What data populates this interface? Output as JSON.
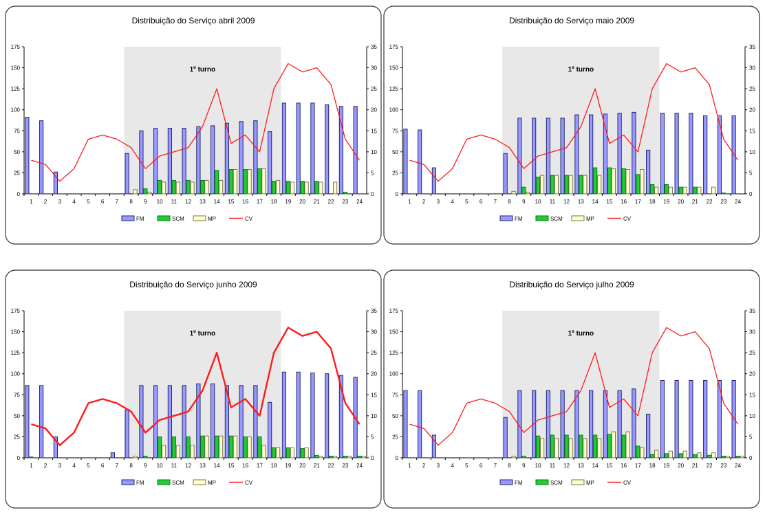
{
  "legend": [
    "FM",
    "SCM",
    "MP",
    "CV"
  ],
  "colors": {
    "fm": "#9999ff",
    "fm_dark": "#1f2a6b",
    "scm": "#22cc33",
    "scm_edge": "#0a7a1a",
    "mp": "#ffffcc",
    "mp_edge": "#777755",
    "cv": "#ff1a1a",
    "shade": "#e8e8e8",
    "frame": "#333333"
  },
  "chart_data": [
    {
      "type": "bar",
      "title": "Distribuição do Serviço abril 2009",
      "shift_label": "1º turno",
      "categories": [
        "1",
        "2",
        "3",
        "4",
        "5",
        "6",
        "7",
        "8",
        "9",
        "10",
        "11",
        "12",
        "13",
        "14",
        "15",
        "16",
        "17",
        "18",
        "19",
        "20",
        "21",
        "22",
        "23",
        "24"
      ],
      "ylim": [
        0,
        175
      ],
      "y2lim": [
        0,
        35
      ],
      "yticks": [
        "0",
        "25",
        "50",
        "75",
        "100",
        "125",
        "150",
        "175"
      ],
      "y2ticks": [
        "0",
        "5",
        "10",
        "15",
        "20",
        "25",
        "30",
        "35"
      ],
      "cv_width": 1.3,
      "series": [
        {
          "name": "FM",
          "values": [
            91,
            87,
            26,
            0,
            0,
            0,
            0,
            48,
            75,
            78,
            78,
            78,
            80,
            81,
            84,
            86,
            87,
            74,
            108,
            108,
            108,
            106,
            104,
            104
          ]
        },
        {
          "name": "SCM",
          "values": [
            0,
            0,
            0,
            0,
            0,
            0,
            0,
            0,
            6,
            16,
            16,
            16,
            16,
            28,
            29,
            29,
            30,
            15,
            15,
            15,
            15,
            0,
            2,
            0
          ]
        },
        {
          "name": "MP",
          "values": [
            0,
            0,
            0,
            0,
            0,
            0,
            0,
            5,
            2,
            14,
            14,
            14,
            16,
            16,
            29,
            29,
            30,
            16,
            14,
            14,
            14,
            14,
            0,
            0
          ]
        },
        {
          "name": "CV",
          "axis": "right",
          "values": [
            8,
            7,
            3,
            6,
            13,
            14,
            13,
            11,
            6,
            9,
            10,
            11,
            16,
            25,
            12,
            14,
            10,
            25,
            31,
            29,
            30,
            26,
            13,
            8
          ]
        }
      ]
    },
    {
      "type": "bar",
      "title": "Distribuição do Serviço maio 2009",
      "shift_label": "1º turno",
      "categories": [
        "1",
        "2",
        "3",
        "4",
        "5",
        "6",
        "7",
        "8",
        "9",
        "10",
        "11",
        "12",
        "13",
        "14",
        "15",
        "16",
        "17",
        "18",
        "19",
        "20",
        "21",
        "22",
        "23",
        "24"
      ],
      "ylim": [
        0,
        175
      ],
      "y2lim": [
        0,
        35
      ],
      "yticks": [
        "0",
        "25",
        "50",
        "75",
        "100",
        "125",
        "150",
        "175"
      ],
      "y2ticks": [
        "0",
        "5",
        "10",
        "15",
        "20",
        "25",
        "30",
        "35"
      ],
      "cv_width": 1.3,
      "series": [
        {
          "name": "FM",
          "values": [
            77,
            76,
            31,
            0,
            0,
            0,
            0,
            48,
            90,
            90,
            90,
            90,
            94,
            94,
            95,
            96,
            97,
            52,
            96,
            96,
            96,
            93,
            93,
            93
          ]
        },
        {
          "name": "SCM",
          "values": [
            0,
            0,
            0,
            0,
            0,
            0,
            0,
            0,
            8,
            20,
            22,
            22,
            22,
            31,
            31,
            30,
            23,
            11,
            11,
            8,
            8,
            0,
            1,
            0
          ]
        },
        {
          "name": "MP",
          "values": [
            0,
            0,
            0,
            0,
            0,
            0,
            0,
            3,
            2,
            22,
            22,
            22,
            22,
            22,
            30,
            29,
            29,
            8,
            8,
            8,
            8,
            8,
            0,
            0
          ]
        },
        {
          "name": "CV",
          "axis": "right",
          "values": [
            8,
            7,
            3,
            6,
            13,
            14,
            13,
            11,
            6,
            9,
            10,
            11,
            16,
            25,
            12,
            14,
            10,
            25,
            31,
            29,
            30,
            26,
            13,
            8
          ]
        }
      ]
    },
    {
      "type": "bar",
      "title": "Distribuição do Serviço junho 2009",
      "shift_label": "1º turno",
      "categories": [
        "1",
        "2",
        "3",
        "4",
        "5",
        "6",
        "7",
        "8",
        "9",
        "10",
        "11",
        "12",
        "13",
        "14",
        "15",
        "16",
        "17",
        "18",
        "19",
        "20",
        "21",
        "22",
        "23",
        "24"
      ],
      "ylim": [
        0,
        175
      ],
      "y2lim": [
        0,
        35
      ],
      "yticks": [
        "0",
        "25",
        "50",
        "75",
        "100",
        "125",
        "150",
        "175"
      ],
      "y2ticks": [
        "0",
        "5",
        "10",
        "15",
        "20",
        "25",
        "30",
        "35"
      ],
      "cv_width": 2.4,
      "series": [
        {
          "name": "FM",
          "values": [
            86,
            86,
            25,
            0,
            0,
            0,
            6,
            57,
            86,
            86,
            86,
            86,
            88,
            88,
            86,
            86,
            86,
            66,
            102,
            102,
            101,
            100,
            98,
            96
          ]
        },
        {
          "name": "SCM",
          "values": [
            1,
            0,
            0,
            0,
            0,
            0,
            0,
            0,
            2,
            25,
            25,
            25,
            26,
            26,
            26,
            25,
            25,
            12,
            12,
            11,
            3,
            2,
            2,
            2
          ]
        },
        {
          "name": "MP",
          "values": [
            0,
            0,
            0,
            0,
            0,
            0,
            0,
            2,
            0,
            15,
            15,
            15,
            26,
            26,
            26,
            25,
            15,
            12,
            12,
            12,
            2,
            2,
            2,
            2
          ]
        },
        {
          "name": "CV",
          "axis": "right",
          "values": [
            8,
            7,
            3,
            6,
            13,
            14,
            13,
            11,
            6,
            9,
            10,
            11,
            16,
            25,
            12,
            14,
            10,
            25,
            31,
            29,
            30,
            26,
            13,
            8
          ]
        }
      ]
    },
    {
      "type": "bar",
      "title": "Distribuição do Serviço julho 2009",
      "shift_label": "1º turno",
      "categories": [
        "1",
        "2",
        "3",
        "4",
        "5",
        "6",
        "7",
        "8",
        "9",
        "10",
        "11",
        "12",
        "13",
        "14",
        "15",
        "16",
        "17",
        "18",
        "19",
        "20",
        "21",
        "22",
        "23",
        "24"
      ],
      "ylim": [
        0,
        175
      ],
      "y2lim": [
        0,
        35
      ],
      "yticks": [
        "0",
        "25",
        "50",
        "75",
        "100",
        "125",
        "150",
        "175"
      ],
      "y2ticks": [
        "0",
        "5",
        "10",
        "15",
        "20",
        "25",
        "30",
        "35"
      ],
      "cv_width": 1.3,
      "series": [
        {
          "name": "FM",
          "values": [
            80,
            80,
            27,
            0,
            0,
            0,
            0,
            48,
            80,
            80,
            80,
            80,
            80,
            80,
            80,
            80,
            82,
            52,
            92,
            92,
            92,
            92,
            92,
            92
          ]
        },
        {
          "name": "SCM",
          "values": [
            0,
            0,
            0,
            0,
            0,
            0,
            0,
            0,
            2,
            26,
            27,
            27,
            27,
            27,
            28,
            27,
            14,
            4,
            5,
            5,
            4,
            3,
            2,
            2
          ]
        },
        {
          "name": "MP",
          "values": [
            0,
            0,
            0,
            0,
            0,
            0,
            0,
            2,
            0,
            23,
            23,
            23,
            23,
            23,
            31,
            31,
            12,
            9,
            8,
            8,
            6,
            6,
            2,
            2
          ]
        },
        {
          "name": "CV",
          "axis": "right",
          "values": [
            8,
            7,
            3,
            6,
            13,
            14,
            13,
            11,
            6,
            9,
            10,
            11,
            16,
            25,
            12,
            14,
            10,
            25,
            31,
            29,
            30,
            26,
            13,
            8
          ]
        }
      ]
    }
  ]
}
